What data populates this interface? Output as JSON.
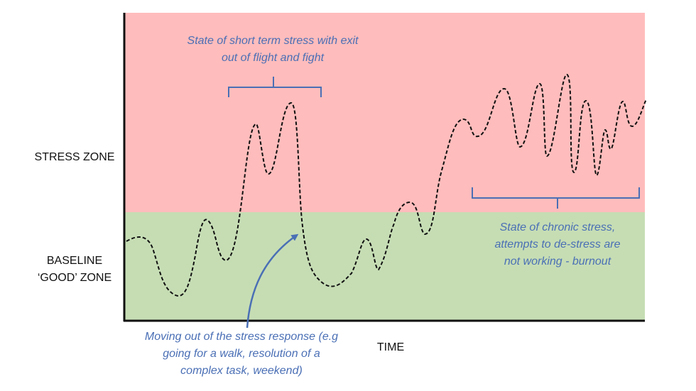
{
  "zones": {
    "stress": {
      "label": "STRESS ZONE",
      "color": "#ffbcbc"
    },
    "baseline": {
      "label_lines": [
        "BASELINE",
        "‘GOOD’ ZONE"
      ],
      "color": "#c6ddb4"
    }
  },
  "axis": {
    "x_label": "TIME"
  },
  "annotations": {
    "short_term": {
      "lines": [
        "State of short term stress with exit",
        "out of flight and fight"
      ]
    },
    "chronic": {
      "lines": [
        "State of chronic stress,",
        "attempts to de-stress are",
        "not working - burnout"
      ]
    },
    "moving_out": {
      "lines": [
        "Moving out of the stress response (e.g",
        "going for a walk, resolution of a",
        "complex task, weekend)"
      ]
    }
  },
  "colors": {
    "annotation": "#4a6fb5",
    "curve": "#111111",
    "axis": "#111111"
  }
}
